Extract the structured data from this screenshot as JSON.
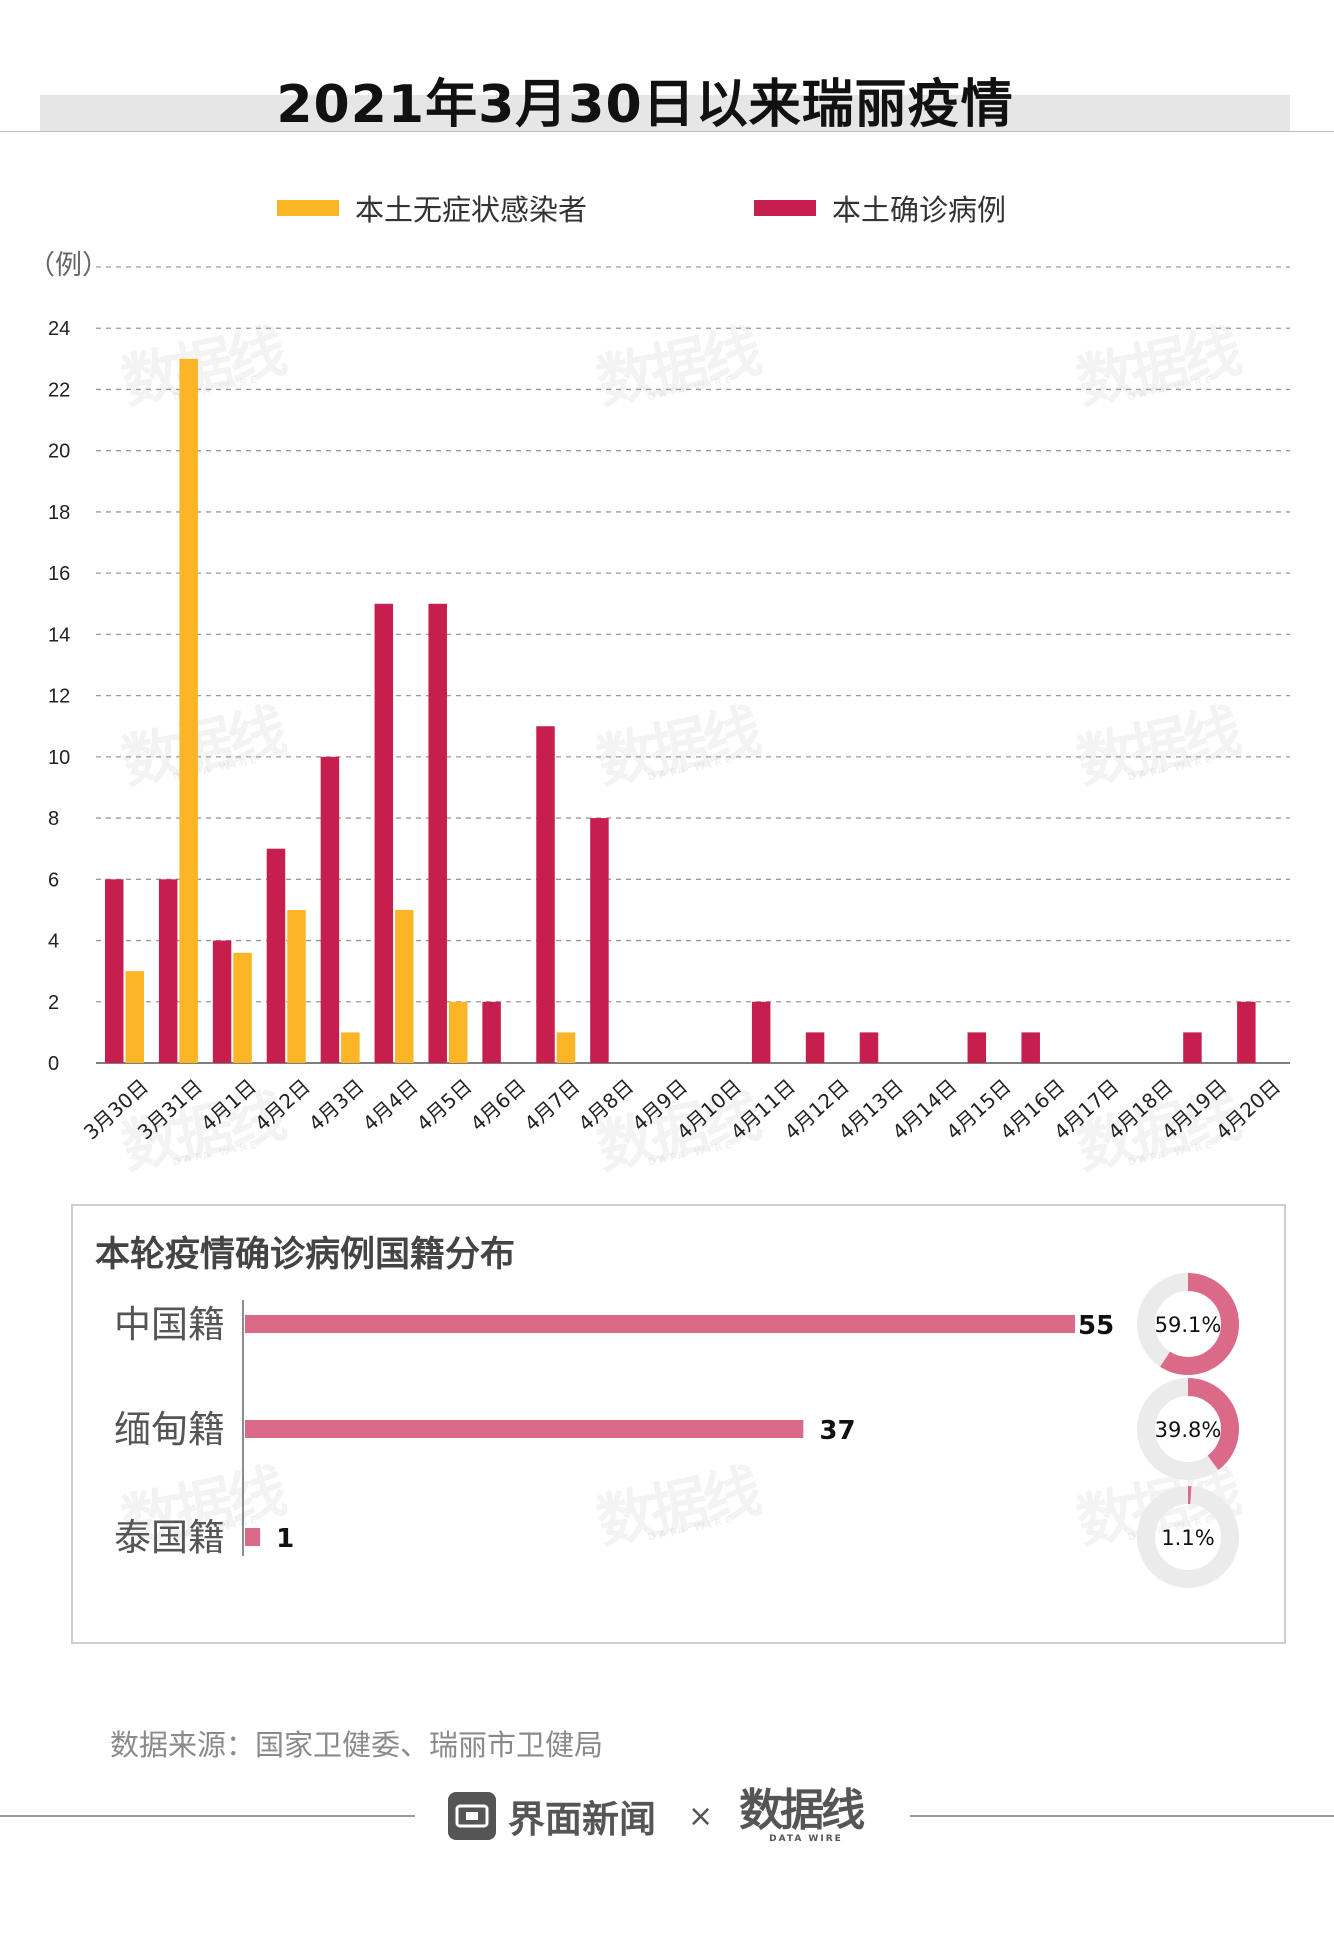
{
  "title": "2021年3月30日以来瑞丽疫情",
  "legend": [
    {
      "label": "本土无症状感染者",
      "color": "#FBB527"
    },
    {
      "label": "本土确诊病例",
      "color": "#C71F4D"
    }
  ],
  "watermark": {
    "cn": "数据线",
    "en": "DATA WIRE"
  },
  "chart_data": [
    {
      "type": "bar",
      "ylabel": "（例）",
      "ylim": [
        0,
        26
      ],
      "yticks": [
        0,
        2,
        4,
        6,
        8,
        10,
        12,
        14,
        16,
        18,
        20,
        22,
        24
      ],
      "grid": true,
      "legend_position": "top",
      "categories": [
        "3月30日",
        "3月31日",
        "4月1日",
        "4月2日",
        "4月3日",
        "4月4日",
        "4月5日",
        "4月6日",
        "4月7日",
        "4月8日",
        "4月9日",
        "4月10日",
        "4月11日",
        "4月12日",
        "4月13日",
        "4月14日",
        "4月15日",
        "4月16日",
        "4月17日",
        "4月18日",
        "4月19日",
        "4月20日"
      ],
      "series": [
        {
          "name": "本土确诊病例",
          "color": "#C71F4D",
          "values": [
            6,
            6,
            4,
            7,
            10,
            15,
            15,
            2,
            11,
            8,
            0,
            0,
            2,
            1,
            1,
            0,
            1,
            1,
            0,
            0,
            1,
            2
          ]
        },
        {
          "name": "本土无症状感染者",
          "color": "#FBB527",
          "values": [
            3,
            23,
            3.6,
            5,
            1,
            5,
            2,
            0,
            1,
            0,
            0,
            0,
            0,
            0,
            0,
            0,
            0,
            0,
            0,
            0,
            0,
            0
          ]
        }
      ]
    },
    {
      "type": "bar",
      "orientation": "horizontal",
      "title": "本轮疫情确诊病例国籍分布",
      "categories": [
        "中国籍",
        "缅甸籍",
        "泰国籍"
      ],
      "values": [
        55,
        37,
        1
      ],
      "percents": [
        "59.1%",
        "39.8%",
        "1.1%"
      ],
      "percent_values": [
        59.1,
        39.8,
        1.1
      ],
      "bar_color": "#DB6A88",
      "ring_track_color": "#EBEBEB"
    }
  ],
  "source": "数据来源：国家卫健委、瑞丽市卫健局",
  "footer": {
    "brand": "界面新闻",
    "separator": "×",
    "partner_cn": "数据线",
    "partner_en": "DATA WIRE"
  }
}
